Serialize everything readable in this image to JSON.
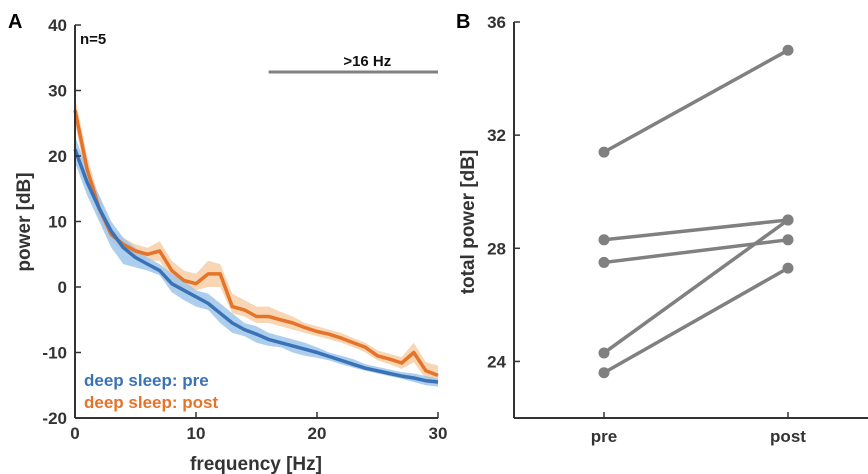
{
  "colors": {
    "pre": "#3a72b8",
    "pre_band": "#9fc6ea",
    "post": "#e5732a",
    "post_band": "#f8cfa6",
    "axis": "#333333",
    "pair": "#808080"
  },
  "chart_data": [
    {
      "type": "line",
      "panel_label": "A",
      "annotation_n": "n=5",
      "bar_label": ">16 Hz",
      "bar_range": [
        16,
        30
      ],
      "xlabel": "frequency [Hz]",
      "ylabel": "power [dB]",
      "xlim": [
        0,
        30
      ],
      "ylim": [
        -20,
        40
      ],
      "xticks": [
        "0",
        "10",
        "20",
        "30"
      ],
      "yticks": [
        "-20",
        "-10",
        "0",
        "10",
        "20",
        "30",
        "40"
      ],
      "x": [
        0,
        1,
        2,
        3,
        4,
        5,
        6,
        7,
        8,
        9,
        10,
        11,
        12,
        13,
        14,
        15,
        16,
        17,
        18,
        19,
        20,
        21,
        22,
        23,
        24,
        25,
        26,
        27,
        28,
        29,
        30
      ],
      "series": [
        {
          "name": "deep sleep: pre",
          "values": [
            21,
            16,
            12,
            8.5,
            6,
            4.5,
            3.5,
            2.5,
            0.5,
            -0.5,
            -1.5,
            -2.5,
            -4,
            -5.5,
            -6.5,
            -7.2,
            -8,
            -8.5,
            -9,
            -9.5,
            -10,
            -10.6,
            -11.2,
            -11.8,
            -12.4,
            -12.8,
            -13.2,
            -13.6,
            -13.9,
            -14.3,
            -14.5
          ],
          "band_low": [
            19,
            14,
            10,
            6,
            3.5,
            3,
            2.5,
            1.8,
            -0.8,
            -2,
            -3,
            -3.5,
            -5.5,
            -7,
            -7.5,
            -8.5,
            -9,
            -9.2,
            -10,
            -10.5,
            -10.8,
            -11.2,
            -11.8,
            -12.3,
            -12.8,
            -13.2,
            -13.6,
            -14,
            -14.5,
            -15,
            -15.2
          ],
          "band_high": [
            23,
            18,
            14,
            10,
            7.5,
            6,
            4.5,
            3.5,
            2,
            1,
            -0.5,
            -1,
            -2.5,
            -4,
            -5.5,
            -6,
            -7,
            -7.5,
            -8,
            -8.5,
            -9.2,
            -10,
            -10.5,
            -11,
            -11.8,
            -12.2,
            -12.6,
            -13,
            -13.2,
            -13.6,
            -14
          ]
        },
        {
          "name": "deep sleep: post",
          "values": [
            27,
            18,
            12,
            8,
            6.5,
            5.5,
            5,
            5.5,
            2.5,
            1,
            0.5,
            2,
            2,
            -3,
            -3.5,
            -4.5,
            -4.5,
            -5,
            -5.5,
            -6.2,
            -6.8,
            -7.2,
            -7.8,
            -8.5,
            -9.2,
            -10.5,
            -11,
            -11.6,
            -10,
            -12.8,
            -13.5
          ],
          "band_low": [
            25,
            16,
            10.5,
            7,
            5.5,
            4.5,
            4,
            4,
            1,
            -0.5,
            -0.5,
            0,
            0,
            -4,
            -4.5,
            -5.5,
            -5.5,
            -6,
            -6.5,
            -7,
            -7.5,
            -8,
            -8.5,
            -9.2,
            -10,
            -11.2,
            -11.8,
            -12.5,
            -11.5,
            -14,
            -15
          ],
          "band_high": [
            29,
            20,
            13.5,
            9,
            7.5,
            6.5,
            6,
            7,
            4,
            2.5,
            2,
            4,
            3.5,
            -1,
            -2,
            -3,
            -3,
            -3.8,
            -4.5,
            -5.5,
            -6,
            -6.5,
            -7,
            -7.8,
            -8.5,
            -9.7,
            -10.2,
            -10.7,
            -8.5,
            -11.5,
            -12
          ]
        }
      ]
    },
    {
      "type": "scatter",
      "panel_label": "B",
      "ylabel": "total power [dB]",
      "categories": [
        "pre",
        "post"
      ],
      "ylim": [
        22,
        36
      ],
      "yticks": [
        "24",
        "28",
        "32",
        "36"
      ],
      "pairs": [
        [
          31.4,
          35.0
        ],
        [
          28.3,
          29.0
        ],
        [
          27.5,
          28.3
        ],
        [
          24.3,
          29.0
        ],
        [
          23.6,
          27.3
        ]
      ]
    }
  ]
}
